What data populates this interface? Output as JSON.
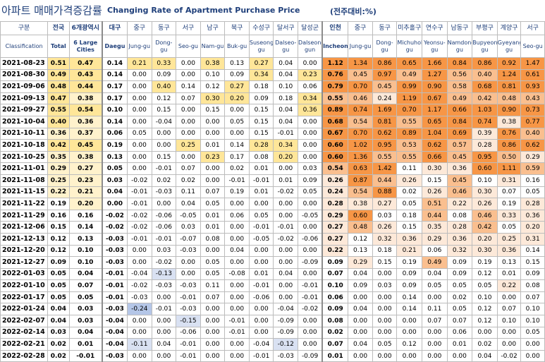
{
  "title": {
    "korean": "아파트 매매가격증감률",
    "english": "Changing Rate of Apartment Purchase Price",
    "unit": "(전주대비:%)"
  },
  "columns": [
    {
      "ko": "구분",
      "en": "Classification"
    },
    {
      "ko": "전국",
      "en": "Total"
    },
    {
      "ko": "6개광역시",
      "en": "6 Large Cities"
    },
    {
      "ko": "대구",
      "en": "Daegu"
    },
    {
      "ko": "중구",
      "en": "Jung-gu"
    },
    {
      "ko": "동구",
      "en": "Dong-gu"
    },
    {
      "ko": "서구",
      "en": "Seo-gu"
    },
    {
      "ko": "남구",
      "en": "Nam-gu"
    },
    {
      "ko": "북구",
      "en": "Buk-gu"
    },
    {
      "ko": "수성구",
      "en": "Suseong-gu"
    },
    {
      "ko": "달서구",
      "en": "Dalseo-gu"
    },
    {
      "ko": "달성군",
      "en": "Dalseong-gun"
    },
    {
      "ko": "인천",
      "en": "Incheon"
    },
    {
      "ko": "중구",
      "en": "Jung-gu"
    },
    {
      "ko": "동구",
      "en": "Dong-gu"
    },
    {
      "ko": "미추홀구",
      "en": "Michuhol-gu"
    },
    {
      "ko": "연수구",
      "en": "Yeonsu-gu"
    },
    {
      "ko": "남동구",
      "en": "Namdong-gu"
    },
    {
      "ko": "부평구",
      "en": "Bupyeong-gu"
    },
    {
      "ko": "계양구",
      "en": "Gyeyang-gu"
    },
    {
      "ko": "서구",
      "en": "Seo-gu"
    }
  ],
  "rows": [
    {
      "date": "2021-08-23",
      "v": [
        "0.51",
        "0.47",
        "0.14",
        "0.21",
        "0.33",
        "0.00",
        "0.38",
        "0.13",
        "0.27",
        "0.04",
        "0.00",
        "1.12",
        "1.34",
        "0.86",
        "0.65",
        "1.66",
        "0.84",
        "0.86",
        "0.92",
        "1.47"
      ]
    },
    {
      "date": "2021-08-30",
      "v": [
        "0.49",
        "0.43",
        "0.14",
        "0.00",
        "0.09",
        "0.00",
        "0.10",
        "0.09",
        "0.34",
        "0.04",
        "0.23",
        "0.76",
        "0.45",
        "0.97",
        "0.49",
        "1.27",
        "0.56",
        "0.40",
        "1.24",
        "0.61"
      ]
    },
    {
      "date": "2021-09-06",
      "v": [
        "0.48",
        "0.44",
        "0.17",
        "0.00",
        "0.40",
        "0.14",
        "0.12",
        "0.27",
        "0.18",
        "0.10",
        "0.06",
        "0.79",
        "0.70",
        "0.45",
        "0.99",
        "0.90",
        "0.58",
        "0.68",
        "0.81",
        "0.93"
      ]
    },
    {
      "date": "2021-09-13",
      "v": [
        "0.47",
        "0.38",
        "0.17",
        "0.00",
        "0.12",
        "0.07",
        "0.30",
        "0.20",
        "0.09",
        "0.18",
        "0.34",
        "0.55",
        "0.46",
        "0.24",
        "1.19",
        "0.67",
        "0.49",
        "0.42",
        "0.48",
        "0.43"
      ]
    },
    {
      "date": "2021-09-27",
      "v": [
        "0.55",
        "0.54",
        "0.10",
        "0.00",
        "0.15",
        "0.00",
        "0.15",
        "0.00",
        "0.15",
        "0.04",
        "0.36",
        "0.89",
        "0.74",
        "1.69",
        "0.70",
        "1.17",
        "0.66",
        "1.03",
        "0.90",
        "0.73"
      ]
    },
    {
      "date": "2021-10-04",
      "v": [
        "0.40",
        "0.36",
        "0.14",
        "0.00",
        "-0.04",
        "0.00",
        "0.00",
        "0.05",
        "0.15",
        "0.04",
        "0.00",
        "0.68",
        "0.54",
        "0.81",
        "0.55",
        "0.65",
        "0.84",
        "0.74",
        "0.38",
        "0.77"
      ]
    },
    {
      "date": "2021-10-11",
      "v": [
        "0.36",
        "0.37",
        "0.06",
        "0.05",
        "0.00",
        "0.00",
        "0.00",
        "0.00",
        "0.15",
        "-0.01",
        "0.00",
        "0.67",
        "0.70",
        "0.62",
        "0.89",
        "1.04",
        "0.69",
        "0.39",
        "0.76",
        "0.40"
      ]
    },
    {
      "date": "2021-10-18",
      "v": [
        "0.42",
        "0.45",
        "0.19",
        "0.00",
        "0.00",
        "0.25",
        "0.01",
        "0.14",
        "0.28",
        "0.34",
        "0.00",
        "0.60",
        "1.02",
        "0.95",
        "0.53",
        "0.62",
        "0.57",
        "0.28",
        "0.86",
        "0.62"
      ]
    },
    {
      "date": "2021-10-25",
      "v": [
        "0.35",
        "0.38",
        "0.13",
        "0.00",
        "0.15",
        "0.00",
        "0.23",
        "0.17",
        "0.08",
        "0.20",
        "0.00",
        "0.60",
        "1.36",
        "0.55",
        "0.55",
        "0.66",
        "0.45",
        "0.95",
        "0.50",
        "0.29"
      ]
    },
    {
      "date": "2021-11-01",
      "v": [
        "0.29",
        "0.27",
        "0.05",
        "0.00",
        "-0.01",
        "0.07",
        "0.00",
        "0.02",
        "0.01",
        "0.00",
        "0.03",
        "0.54",
        "0.63",
        "1.42",
        "0.11",
        "0.30",
        "0.36",
        "0.60",
        "1.11",
        "0.59"
      ]
    },
    {
      "date": "2021-11-08",
      "v": [
        "0.25",
        "0.23",
        "0.03",
        "-0.02",
        "0.02",
        "0.02",
        "0.00",
        "-0.01",
        "-0.01",
        "0.01",
        "0.09",
        "0.26",
        "0.87",
        "0.44",
        "0.26",
        "0.15",
        "0.45",
        "0.10",
        "0.31",
        "0.16"
      ]
    },
    {
      "date": "2021-11-15",
      "v": [
        "0.22",
        "0.21",
        "0.04",
        "-0.01",
        "-0.03",
        "0.11",
        "0.07",
        "0.19",
        "0.01",
        "-0.02",
        "0.05",
        "0.24",
        "0.54",
        "0.88",
        "0.02",
        "0.26",
        "0.46",
        "0.30",
        "0.07",
        "0.05"
      ]
    },
    {
      "date": "2021-11-22",
      "v": [
        "0.19",
        "0.20",
        "0.00",
        "-0.01",
        "0.00",
        "0.04",
        "0.05",
        "0.00",
        "0.00",
        "0.00",
        "0.00",
        "0.28",
        "0.38",
        "0.27",
        "0.05",
        "0.51",
        "0.22",
        "0.26",
        "0.19",
        "0.28"
      ]
    },
    {
      "date": "2021-11-29",
      "v": [
        "0.16",
        "0.16",
        "-0.02",
        "-0.02",
        "-0.06",
        "-0.05",
        "0.01",
        "0.06",
        "0.05",
        "0.00",
        "-0.05",
        "0.29",
        "0.60",
        "0.03",
        "0.18",
        "0.44",
        "0.08",
        "0.46",
        "0.33",
        "0.36"
      ]
    },
    {
      "date": "2021-12-06",
      "v": [
        "0.15",
        "0.14",
        "-0.02",
        "-0.02",
        "-0.06",
        "0.03",
        "0.01",
        "0.00",
        "-0.01",
        "-0.01",
        "0.00",
        "0.27",
        "0.48",
        "0.26",
        "0.15",
        "0.35",
        "0.28",
        "0.42",
        "0.05",
        "0.20"
      ]
    },
    {
      "date": "2021-12-13",
      "v": [
        "0.12",
        "0.13",
        "-0.03",
        "-0.01",
        "-0.01",
        "-0.07",
        "0.08",
        "0.00",
        "-0.05",
        "-0.02",
        "-0.06",
        "0.27",
        "0.12",
        "0.32",
        "0.36",
        "0.29",
        "0.36",
        "0.20",
        "0.25",
        "0.31"
      ]
    },
    {
      "date": "2021-12-20",
      "v": [
        "0.12",
        "0.10",
        "-0.03",
        "0.00",
        "0.03",
        "-0.03",
        "0.00",
        "0.04",
        "0.00",
        "0.00",
        "0.00",
        "0.22",
        "0.13",
        "0.18",
        "0.21",
        "0.06",
        "0.32",
        "0.30",
        "0.36",
        "0.14"
      ]
    },
    {
      "date": "2021-12-27",
      "v": [
        "0.09",
        "0.10",
        "-0.03",
        "0.00",
        "-0.02",
        "0.00",
        "0.05",
        "0.00",
        "0.00",
        "0.00",
        "-0.09",
        "0.09",
        "0.29",
        "0.15",
        "0.19",
        "0.49",
        "0.09",
        "0.19",
        "0.13",
        "0.15"
      ]
    },
    {
      "date": "2022-01-03",
      "v": [
        "0.05",
        "0.04",
        "-0.01",
        "-0.04",
        "-0.13",
        "0.00",
        "0.05",
        "-0.08",
        "0.01",
        "0.04",
        "0.00",
        "0.07",
        "0.04",
        "0.00",
        "0.09",
        "0.04",
        "0.09",
        "0.12",
        "0.01",
        "0.09"
      ]
    },
    {
      "date": "2022-01-10",
      "v": [
        "0.05",
        "0.07",
        "-0.01",
        "-0.02",
        "-0.03",
        "-0.03",
        "0.11",
        "0.00",
        "-0.01",
        "0.00",
        "-0.01",
        "0.10",
        "0.09",
        "0.03",
        "0.09",
        "0.05",
        "0.05",
        "0.05",
        "0.22",
        "0.08"
      ]
    },
    {
      "date": "2022-01-17",
      "v": [
        "0.05",
        "0.05",
        "-0.01",
        "-0.03",
        "0.00",
        "-0.01",
        "0.07",
        "0.00",
        "-0.06",
        "0.00",
        "-0.01",
        "0.06",
        "0.00",
        "0.00",
        "0.14",
        "0.00",
        "0.02",
        "0.10",
        "0.00",
        "0.07"
      ]
    },
    {
      "date": "2022-01-24",
      "v": [
        "0.04",
        "0.03",
        "-0.03",
        "-0.24",
        "-0.01",
        "-0.03",
        "0.00",
        "0.00",
        "0.00",
        "-0.04",
        "-0.02",
        "0.09",
        "0.04",
        "0.00",
        "0.14",
        "0.11",
        "0.05",
        "0.12",
        "0.07",
        "0.10"
      ]
    },
    {
      "date": "2022-02-07",
      "v": [
        "0.04",
        "0.03",
        "-0.04",
        "0.00",
        "0.00",
        "-0.15",
        "0.00",
        "-0.01",
        "0.00",
        "-0.09",
        "0.00",
        "0.08",
        "0.00",
        "0.00",
        "0.00",
        "0.07",
        "0.07",
        "0.12",
        "0.10",
        "0.10"
      ]
    },
    {
      "date": "2022-02-14",
      "v": [
        "0.03",
        "0.04",
        "-0.04",
        "0.00",
        "0.00",
        "-0.06",
        "0.00",
        "-0.01",
        "0.00",
        "-0.09",
        "0.00",
        "0.02",
        "0.00",
        "0.00",
        "0.00",
        "0.00",
        "0.06",
        "0.00",
        "0.00",
        "0.05"
      ]
    },
    {
      "date": "2022-02-21",
      "v": [
        "0.02",
        "0.01",
        "-0.04",
        "-0.11",
        "0.04",
        "-0.01",
        "0.00",
        "0.00",
        "-0.04",
        "-0.12",
        "0.00",
        "0.07",
        "0.04",
        "0.05",
        "0.12",
        "0.00",
        "0.01",
        "0.02",
        "0.00",
        "0.00"
      ]
    },
    {
      "date": "2022-02-28",
      "v": [
        "0.02",
        "-0.01",
        "-0.03",
        "0.00",
        "0.00",
        "-0.01",
        "0.00",
        "0.00",
        "-0.01",
        "-0.03",
        "-0.09",
        "0.01",
        "0.00",
        "0.00",
        "0.00",
        "0.00",
        "0.00",
        "0.04",
        "-0.02",
        "0.00"
      ]
    }
  ],
  "colors": {
    "heat_strong": "#f79646",
    "heat_medium": "#fabf8f",
    "heat_light": "#fde9d9",
    "yellow_strong": "#ffe699",
    "yellow_light": "#fff2cc",
    "blue_strong": "#b4c6e7",
    "blue_light": "#d9e1f2",
    "title": "#1f3f7a"
  }
}
